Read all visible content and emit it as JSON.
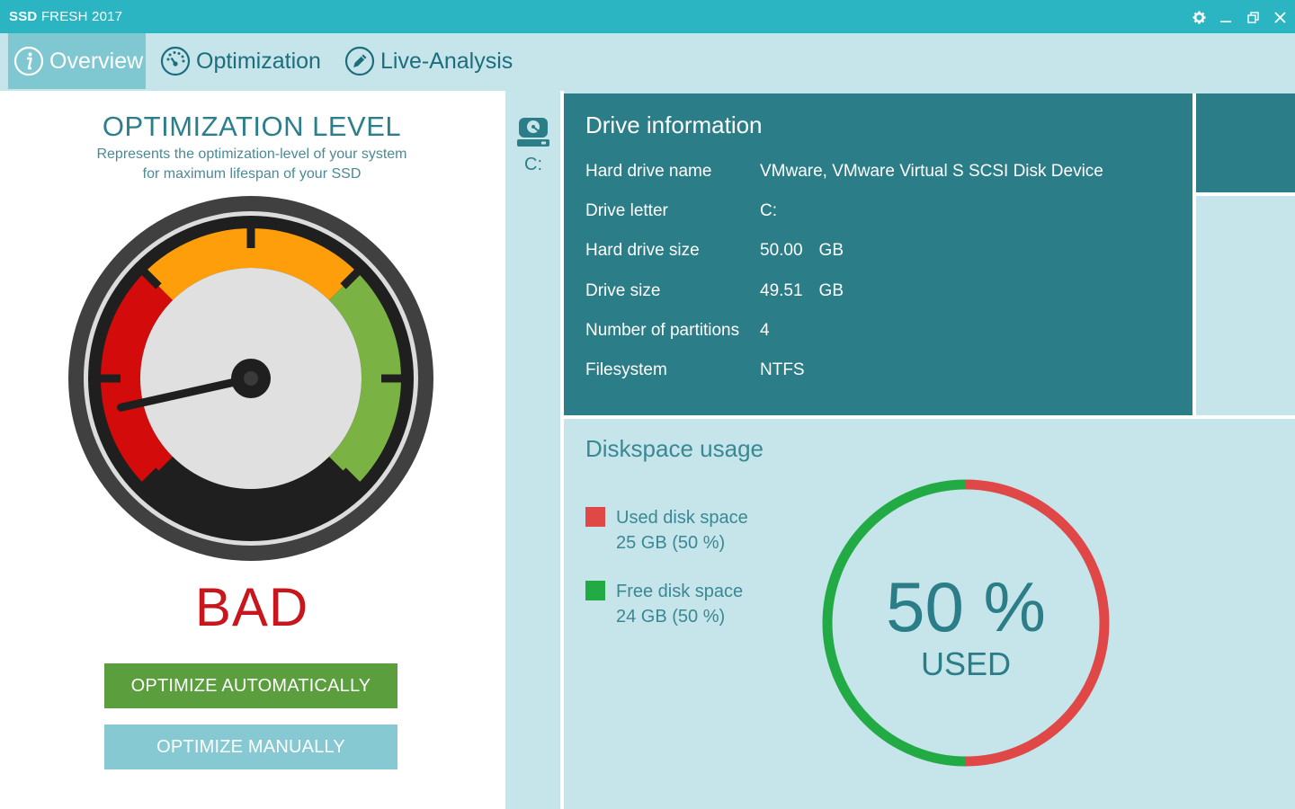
{
  "app": {
    "title_bold": "SSD",
    "title_rest": " FRESH 2017"
  },
  "nav": {
    "tabs": [
      {
        "label": "Overview",
        "icon": "info-icon"
      },
      {
        "label": "Optimization",
        "icon": "speedometer-icon"
      },
      {
        "label": "Live-Analysis",
        "icon": "pencil-icon"
      }
    ],
    "active": "Overview"
  },
  "optimization": {
    "title": "OPTIMIZATION LEVEL",
    "subtitle": "Represents the optimization-level of your system for maximum lifespan of your SSD",
    "gauge_level_fraction": 0.12,
    "status": "BAD",
    "buttons": {
      "auto": "OPTIMIZE AUTOMATICALLY",
      "manual": "OPTIMIZE MANUALLY"
    }
  },
  "drives": [
    {
      "label": "C:",
      "icon": "hard-drive-icon"
    }
  ],
  "drive_info": {
    "title": "Drive information",
    "rows": [
      {
        "key": "Hard drive name",
        "value": "VMware, VMware Virtual S SCSI Disk Device",
        "unit": ""
      },
      {
        "key": "Drive letter",
        "value": "C:",
        "unit": ""
      },
      {
        "key": "Hard drive size",
        "value": "50.00",
        "unit": "GB"
      },
      {
        "key": "Drive size",
        "value": "49.51",
        "unit": "GB"
      },
      {
        "key": "Number of partitions",
        "value": "4",
        "unit": ""
      },
      {
        "key": "Filesystem",
        "value": "NTFS",
        "unit": ""
      }
    ]
  },
  "disk_usage": {
    "title": "Diskspace usage",
    "used": {
      "label": "Used disk space",
      "detail": "25 GB (50 %)",
      "color": "#e04848"
    },
    "free": {
      "label": "Free disk space",
      "detail": "24 GB (50 %)",
      "color": "#22ab45"
    },
    "percent_text": "50 %",
    "used_text": "USED",
    "used_fraction": 0.5
  },
  "colors": {
    "titlebar": "#2bb5c3",
    "accent": "#2b7d87",
    "bad": "#c8161d",
    "gauge_red": "#d40b0b",
    "gauge_orange": "#ff9e0b",
    "gauge_green": "#7ab343"
  }
}
